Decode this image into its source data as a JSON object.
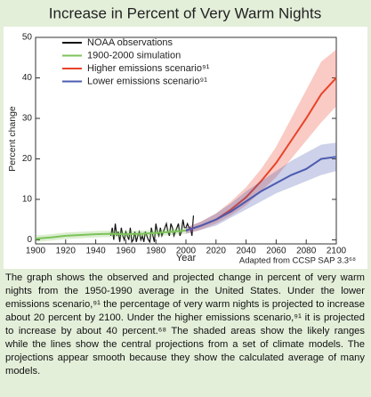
{
  "chart_data": {
    "type": "line",
    "title": "Increase in Percent of Very Warm Nights",
    "xlabel": "Year",
    "ylabel": "Percent change",
    "xlim": [
      1900,
      2100
    ],
    "xticks": [
      1900,
      1920,
      1940,
      1960,
      1980,
      2000,
      2020,
      2040,
      2060,
      2080,
      2100
    ],
    "ylim": [
      -1,
      50
    ],
    "yticks": [
      0,
      10,
      20,
      30,
      40,
      50
    ],
    "legend": "upper-left",
    "source": "Adapted from CCSP SAP 3.3⁶⁸",
    "series": [
      {
        "name": "NOAA observations",
        "color": "#111111",
        "x": [
          1950,
          1951,
          1952,
          1953,
          1954,
          1955,
          1956,
          1957,
          1958,
          1959,
          1960,
          1961,
          1962,
          1963,
          1964,
          1965,
          1966,
          1967,
          1968,
          1969,
          1970,
          1971,
          1972,
          1973,
          1974,
          1975,
          1976,
          1977,
          1978,
          1979,
          1980,
          1981,
          1982,
          1983,
          1984,
          1985,
          1986,
          1987,
          1988,
          1989,
          1990,
          1991,
          1992,
          1993,
          1994,
          1995,
          1996,
          1997,
          1998,
          1999,
          2000,
          2001,
          2002,
          2003,
          2004,
          2005
        ],
        "values": [
          1,
          3,
          0,
          4,
          1,
          2,
          -0.5,
          3,
          1,
          0,
          2,
          1,
          0,
          3,
          -0.5,
          0,
          2,
          -0.5,
          1,
          2,
          0,
          1,
          -0.5,
          2,
          1,
          0,
          -0.5,
          3,
          1,
          -0.5,
          4,
          2,
          1,
          3,
          1,
          2,
          3,
          4,
          2,
          1,
          4,
          3,
          1,
          2,
          3,
          4,
          1,
          2,
          5,
          3,
          3,
          4,
          3,
          3,
          1,
          6
        ]
      },
      {
        "name": "1900-2000 simulation",
        "color": "#7dc35a",
        "x": [
          1900,
          1910,
          1920,
          1930,
          1940,
          1950,
          1960,
          1970,
          1980,
          1990,
          2000
        ],
        "values": [
          0.3,
          0.6,
          1,
          1.2,
          1.4,
          1.5,
          1.4,
          1.5,
          1.7,
          2,
          2.3
        ],
        "upper": [
          1.1,
          1.4,
          1.8,
          2,
          2.2,
          2.3,
          2.2,
          2.3,
          2.5,
          2.8,
          3.1
        ],
        "lower": [
          -0.5,
          -0.2,
          0.2,
          0.4,
          0.6,
          0.7,
          0.6,
          0.7,
          0.9,
          1.2,
          1.5
        ]
      },
      {
        "name": "Higher emissions scenario⁹¹",
        "color": "#e8432a",
        "x": [
          2000,
          2010,
          2020,
          2030,
          2040,
          2050,
          2060,
          2070,
          2080,
          2090,
          2100
        ],
        "values": [
          2.3,
          3.5,
          5,
          7.5,
          10.5,
          14.5,
          19,
          24.5,
          30,
          36,
          40
        ],
        "upper": [
          3,
          4.5,
          6.5,
          9.5,
          13,
          17.5,
          23,
          30,
          37,
          44,
          47
        ],
        "lower": [
          1.5,
          2.5,
          4,
          6,
          8.5,
          12,
          15.5,
          20,
          24.5,
          29,
          33
        ]
      },
      {
        "name": "Lower emissions scenario⁹¹",
        "color": "#4c5bb0",
        "x": [
          2000,
          2010,
          2020,
          2030,
          2040,
          2050,
          2060,
          2070,
          2080,
          2090,
          2100
        ],
        "values": [
          2.3,
          3.5,
          5,
          7,
          9.5,
          12,
          14,
          16,
          17.5,
          20,
          20.5
        ],
        "upper": [
          3,
          4.5,
          6.5,
          9,
          12,
          14.5,
          17,
          19.5,
          21.5,
          23.5,
          24
        ],
        "lower": [
          1.5,
          2.5,
          3.5,
          5.5,
          7.5,
          9.5,
          11.5,
          13,
          14.5,
          16,
          17
        ]
      }
    ]
  },
  "caption": "The graph shows the observed and projected change in percent of very warm nights from the 1950-1990 average in the United States. Under the lower emissions scenario,⁹¹ the percentage of very warm nights is projected to increase about 20 percent by 2100. Under the higher emissions scenario,⁹¹ it is projected to increase by about 40 percent.⁶⁸ The shaded areas show the likely ranges while the lines show the central projections from a set of climate models. The projections appear smooth because they show the calculated average of many models."
}
